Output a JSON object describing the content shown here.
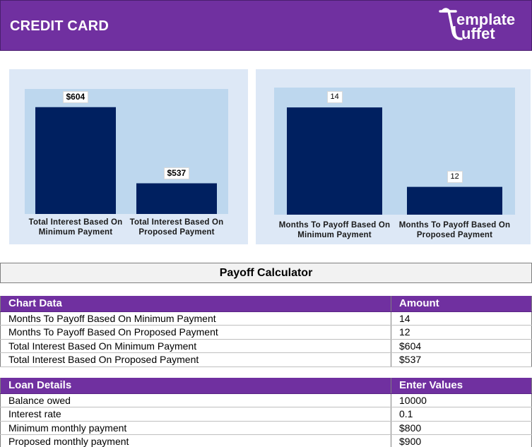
{
  "header": {
    "title": "CREDIT CARD",
    "logo_line1": "emplate",
    "logo_line2": "uffet"
  },
  "colors": {
    "header_bg": "#7030a0",
    "bar": "#002060",
    "plot_bg": "#bdd7ee",
    "panel_bg": "#dde8f6"
  },
  "chart_data": [
    {
      "type": "bar",
      "title": "",
      "categories": [
        "Total Interest Based On Minimum Payment",
        "Total Interest Based On Proposed Payment"
      ],
      "category_lines": [
        [
          "Total Interest Based On",
          "Minimum Payment"
        ],
        [
          "Total Interest Based On",
          "Proposed Payment"
        ]
      ],
      "values": [
        604,
        537
      ],
      "data_labels": [
        "$604",
        "$537"
      ],
      "ylim": [
        510,
        620
      ],
      "xlabel": "",
      "ylabel": "",
      "grid": false
    },
    {
      "type": "bar",
      "title": "",
      "categories": [
        "Months To Payoff Based On Minimum Payment",
        "Months To Payoff Based On Proposed Payment"
      ],
      "category_lines": [
        [
          "Months To Payoff Based On",
          "Minimum Payment"
        ],
        [
          "Months To Payoff Based On",
          "Proposed Payment"
        ]
      ],
      "values": [
        14,
        12
      ],
      "data_labels": [
        "14",
        "12"
      ],
      "ylim": [
        11.3,
        14.5
      ],
      "xlabel": "",
      "ylabel": "",
      "grid": false
    }
  ],
  "calculator": {
    "title": "Payoff Calculator",
    "chart_table": {
      "headers": [
        "Chart Data",
        "Amount"
      ],
      "rows": [
        [
          "Months To Payoff Based On Minimum Payment",
          "14"
        ],
        [
          "Months To Payoff Based On Proposed Payment",
          "12"
        ],
        [
          "Total Interest Based On Minimum Payment",
          "$604"
        ],
        [
          "Total Interest Based On Proposed Payment",
          "$537"
        ]
      ]
    },
    "loan_table": {
      "headers": [
        "Loan Details",
        "Enter Values"
      ],
      "rows": [
        [
          "Balance owed",
          "10000"
        ],
        [
          "Interest rate",
          "0.1"
        ],
        [
          "Minimum monthly payment",
          "$800"
        ],
        [
          "Proposed monthly payment",
          "$900"
        ]
      ]
    }
  }
}
